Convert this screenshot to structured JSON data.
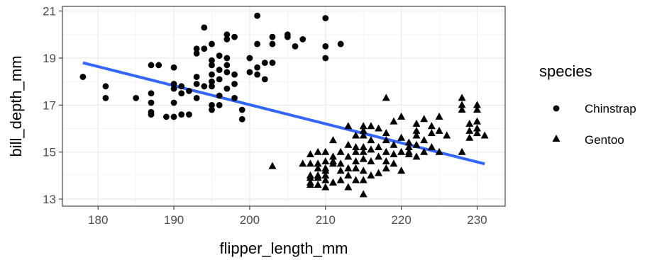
{
  "chart_data": {
    "type": "scatter",
    "xlabel": "flipper_length_mm",
    "ylabel": "bill_depth_mm",
    "xlim": [
      175.3,
      233.7
    ],
    "ylim": [
      12.7,
      21.2
    ],
    "x_ticks": [
      "180",
      "190",
      "200",
      "210",
      "220",
      "230"
    ],
    "x_tick_values": [
      180,
      190,
      200,
      210,
      220,
      230
    ],
    "y_ticks": [
      "13",
      "15",
      "17",
      "19",
      "21"
    ],
    "y_tick_values": [
      13,
      15,
      17,
      19,
      21
    ],
    "grid": true,
    "legend_position": "right",
    "legend_title": "species",
    "point_color": "#000000",
    "line_color": "#3366ff",
    "series": [
      {
        "name": "Chinstrap",
        "marker": "circle",
        "points": [
          [
            178,
            18.2
          ],
          [
            181,
            17.8
          ],
          [
            181,
            17.3
          ],
          [
            185,
            17.3
          ],
          [
            187,
            18.7
          ],
          [
            188,
            18.7
          ],
          [
            187,
            17.5
          ],
          [
            187,
            17.1
          ],
          [
            187,
            16.7
          ],
          [
            187,
            16.6
          ],
          [
            189,
            16.5
          ],
          [
            190,
            18.6
          ],
          [
            190,
            17.9
          ],
          [
            190,
            17.7
          ],
          [
            190,
            17.1
          ],
          [
            190,
            16.5
          ],
          [
            191,
            17.5
          ],
          [
            191,
            17.8
          ],
          [
            191,
            16.6
          ],
          [
            192,
            17.6
          ],
          [
            192,
            16.6
          ],
          [
            193,
            19.4
          ],
          [
            193,
            19.2
          ],
          [
            193,
            18.2
          ],
          [
            193,
            17.3
          ],
          [
            193,
            17.9
          ],
          [
            194,
            20.3
          ],
          [
            194,
            19.4
          ],
          [
            194,
            17.8
          ],
          [
            195,
            18.9
          ],
          [
            195,
            18.7
          ],
          [
            195,
            18.3
          ],
          [
            195,
            17.8
          ],
          [
            195,
            16.8
          ],
          [
            195,
            17.0
          ],
          [
            195,
            19.6
          ],
          [
            195,
            18.0
          ],
          [
            196,
            19.1
          ],
          [
            196,
            18.5
          ],
          [
            196,
            18.1
          ],
          [
            196,
            17.0
          ],
          [
            196,
            17.4
          ],
          [
            197,
            20.0
          ],
          [
            197,
            19.8
          ],
          [
            197,
            19.0
          ],
          [
            197,
            18.7
          ],
          [
            197,
            18.4
          ],
          [
            197,
            17.7
          ],
          [
            198,
            19.9
          ],
          [
            198,
            18.3
          ],
          [
            198,
            17.3
          ],
          [
            198,
            17.9
          ],
          [
            199,
            16.8
          ],
          [
            199,
            16.4
          ],
          [
            200,
            19.0
          ],
          [
            200,
            18.4
          ],
          [
            201,
            20.8
          ],
          [
            201,
            19.6
          ],
          [
            201,
            18.6
          ],
          [
            201,
            18.3
          ],
          [
            202,
            18.1
          ],
          [
            202,
            18.8
          ],
          [
            203,
            19.9
          ],
          [
            203,
            19.6
          ],
          [
            203,
            18.8
          ],
          [
            205,
            20.0
          ],
          [
            205,
            19.9
          ],
          [
            206,
            19.5
          ],
          [
            207,
            19.8
          ],
          [
            210,
            20.7
          ],
          [
            210,
            19.5
          ],
          [
            210,
            19.0
          ],
          [
            212,
            19.6
          ]
        ]
      },
      {
        "name": "Gentoo",
        "marker": "triangle",
        "points": [
          [
            203,
            14.4
          ],
          [
            207,
            14.5
          ],
          [
            208,
            14.5
          ],
          [
            208,
            14.0
          ],
          [
            208,
            13.7
          ],
          [
            208,
            13.9
          ],
          [
            208,
            13.6
          ],
          [
            208,
            14.9
          ],
          [
            209,
            14.5
          ],
          [
            209,
            14.3
          ],
          [
            209,
            14.0
          ],
          [
            209,
            15.0
          ],
          [
            209,
            13.6
          ],
          [
            209,
            13.9
          ],
          [
            210,
            14.6
          ],
          [
            210,
            14.3
          ],
          [
            210,
            14.0
          ],
          [
            210,
            13.8
          ],
          [
            210,
            13.5
          ],
          [
            210,
            14.2
          ],
          [
            210,
            15.0
          ],
          [
            211,
            14.5
          ],
          [
            211,
            14.6
          ],
          [
            211,
            15.5
          ],
          [
            211,
            13.7
          ],
          [
            211,
            14.8
          ],
          [
            212,
            15.0
          ],
          [
            212,
            14.5
          ],
          [
            212,
            13.8
          ],
          [
            212,
            14.2
          ],
          [
            213,
            16.1
          ],
          [
            213,
            14.8
          ],
          [
            213,
            14.3
          ],
          [
            213,
            15.3
          ],
          [
            213,
            14.0
          ],
          [
            213,
            13.5
          ],
          [
            214,
            15.7
          ],
          [
            214,
            15.0
          ],
          [
            214,
            14.6
          ],
          [
            214,
            13.8
          ],
          [
            214,
            14.3
          ],
          [
            214,
            15.2
          ],
          [
            215,
            16.1
          ],
          [
            215,
            15.7
          ],
          [
            215,
            15.2
          ],
          [
            215,
            15.0
          ],
          [
            215,
            14.7
          ],
          [
            215,
            14.2
          ],
          [
            215,
            13.2
          ],
          [
            215,
            13.8
          ],
          [
            215,
            15.9
          ],
          [
            216,
            16.1
          ],
          [
            216,
            15.5
          ],
          [
            216,
            14.6
          ],
          [
            216,
            14.0
          ],
          [
            216,
            15.1
          ],
          [
            217,
            16.0
          ],
          [
            217,
            15.2
          ],
          [
            217,
            14.8
          ],
          [
            217,
            14.1
          ],
          [
            218,
            17.3
          ],
          [
            218,
            15.5
          ],
          [
            218,
            15.0
          ],
          [
            218,
            14.6
          ],
          [
            218,
            14.3
          ],
          [
            218,
            15.8
          ],
          [
            219,
            16.3
          ],
          [
            219,
            15.3
          ],
          [
            219,
            14.9
          ],
          [
            219,
            14.5
          ],
          [
            220,
            16.5
          ],
          [
            220,
            15.6
          ],
          [
            220,
            15.0
          ],
          [
            220,
            14.2
          ],
          [
            221,
            15.4
          ],
          [
            221,
            15.0
          ],
          [
            221,
            15.2
          ],
          [
            221,
            14.9
          ],
          [
            222,
            16.2
          ],
          [
            222,
            15.7
          ],
          [
            222,
            15.3
          ],
          [
            222,
            14.8
          ],
          [
            222,
            15.9
          ],
          [
            223,
            16.4
          ],
          [
            223,
            15.5
          ],
          [
            223,
            15.0
          ],
          [
            224,
            16.1
          ],
          [
            224,
            15.8
          ],
          [
            224,
            15.2
          ],
          [
            225,
            16.5
          ],
          [
            225,
            15.9
          ],
          [
            225,
            15.0
          ],
          [
            226,
            15.7
          ],
          [
            228,
            17.3
          ],
          [
            228,
            17.0
          ],
          [
            228,
            16.8
          ],
          [
            228,
            15.0
          ],
          [
            229,
            16.2
          ],
          [
            229,
            15.9
          ],
          [
            229,
            15.6
          ],
          [
            230,
            17.0
          ],
          [
            230,
            16.8
          ],
          [
            230,
            16.3
          ],
          [
            230,
            16.0
          ],
          [
            230,
            15.8
          ],
          [
            231,
            15.7
          ]
        ]
      }
    ],
    "trendline": {
      "type": "linear",
      "points": [
        [
          178,
          18.8
        ],
        [
          231,
          14.5
        ]
      ]
    }
  }
}
